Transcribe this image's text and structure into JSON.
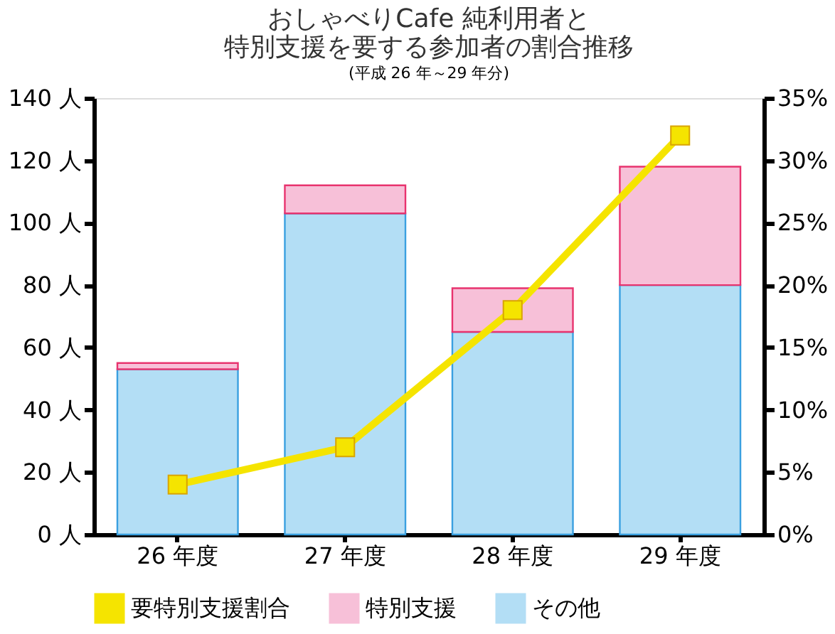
{
  "chart_data": {
    "type": "bar",
    "stacked": true,
    "title": [
      "おしゃべりCafe 純利用者と",
      "特別支援を要する参加者の割合推移"
    ],
    "subtitle": "(平成 26 年～29 年分)",
    "categories": [
      "26 年度",
      "27 年度",
      "28 年度",
      "29 年度"
    ],
    "series": [
      {
        "name": "要特別支援割合",
        "type": "line",
        "axis": "y2",
        "color": "#f5e400",
        "values": [
          4,
          7,
          18,
          32
        ]
      },
      {
        "name": "その他",
        "color": "#b3def5",
        "values": [
          53,
          103,
          65,
          80
        ]
      },
      {
        "name": "特別支援",
        "color": "#f7c0d8",
        "values": [
          2,
          9,
          14,
          38
        ]
      }
    ],
    "ylim": [
      0,
      140
    ],
    "yticks": [
      {
        "value": 0,
        "label": "0 人"
      },
      {
        "value": 20,
        "label": "20 人"
      },
      {
        "value": 40,
        "label": "40 人"
      },
      {
        "value": 60,
        "label": "60 人"
      },
      {
        "value": 80,
        "label": "80 人"
      },
      {
        "value": 100,
        "label": "100 人"
      },
      {
        "value": 120,
        "label": "120 人"
      },
      {
        "value": 140,
        "label": "140 人"
      }
    ],
    "y2lim": [
      0,
      35
    ],
    "y2ticks": [
      {
        "value": 0,
        "label": "0%"
      },
      {
        "value": 5,
        "label": "5%"
      },
      {
        "value": 10,
        "label": "10%"
      },
      {
        "value": 15,
        "label": "15%"
      },
      {
        "value": 20,
        "label": "20%"
      },
      {
        "value": 25,
        "label": "25%"
      },
      {
        "value": 30,
        "label": "30%"
      },
      {
        "value": 35,
        "label": "35%"
      }
    ],
    "marker": "square",
    "line_style": "solid",
    "grid": false,
    "legend": "bottom"
  }
}
